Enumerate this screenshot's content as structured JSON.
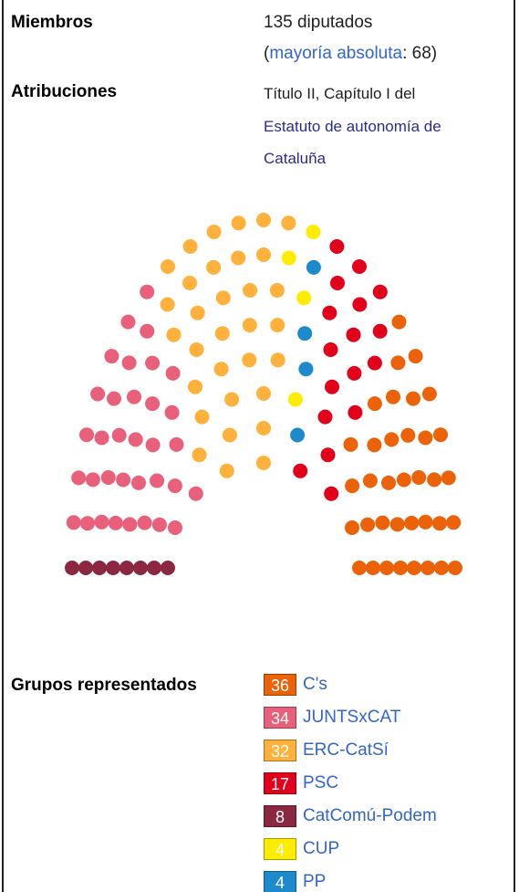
{
  "miembros": {
    "label": "Miembros",
    "value": "135 diputados",
    "paren_open": "(",
    "link": "mayoría absoluta",
    "rest": ": 68)"
  },
  "atribuciones": {
    "label": "Atribuciones",
    "text": "Título II, Capítulo I del",
    "link_lines": [
      "Estatuto de autonomía de",
      "Cataluña"
    ]
  },
  "grupos": {
    "label": "Grupos representados",
    "items": [
      {
        "seats": 36,
        "name": "C's",
        "color": "#EB6209"
      },
      {
        "seats": 34,
        "name": "JUNTSxCAT",
        "color": "#E8607A"
      },
      {
        "seats": 32,
        "name": "ERC-CatSí",
        "color": "#FFB13B"
      },
      {
        "seats": 17,
        "name": "PSC",
        "color": "#E2001A"
      },
      {
        "seats": 8,
        "name": "CatComú-Podem",
        "color": "#8B2740"
      },
      {
        "seats": 4,
        "name": "CUP",
        "color": "#FFED00"
      },
      {
        "seats": 4,
        "name": "PP",
        "color": "#1D8ACB"
      }
    ]
  }
}
